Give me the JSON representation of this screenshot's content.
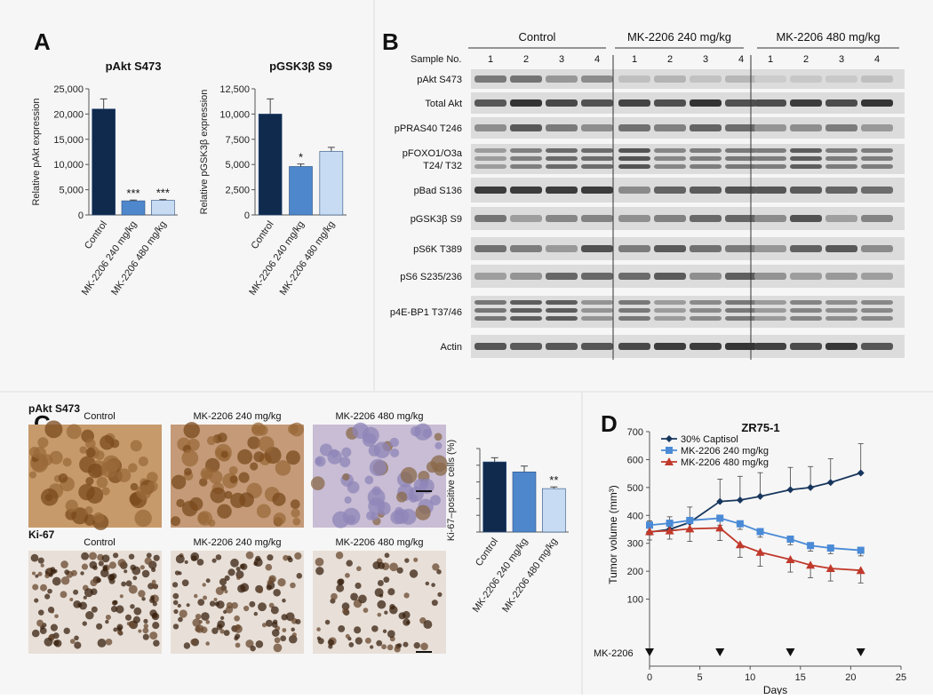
{
  "panels": {
    "A": "A",
    "B": "B",
    "C": "C",
    "D": "D"
  },
  "colors": {
    "control": "#0f2a4d",
    "dose240": "#4f87cc",
    "dose480": "#c7dbf3",
    "captisol": "#17365d",
    "mk240": "#4a8ad6",
    "mk480": "#c0392b"
  },
  "chart_data": [
    {
      "id": "A1",
      "type": "bar",
      "title": "pAkt S473",
      "ylabel": "Relative pAkt expression",
      "categories": [
        "Control",
        "MK-2206 240 mg/kg",
        "MK-2206 480 mg/kg"
      ],
      "values": [
        21000,
        2800,
        2900
      ],
      "errors": [
        2000,
        150,
        150
      ],
      "annotations": [
        "",
        "***",
        "***"
      ],
      "yticks": [
        "0",
        "5,000",
        "10,000",
        "15,000",
        "20,000",
        "25,000"
      ],
      "ylim": [
        0,
        25000
      ]
    },
    {
      "id": "A2",
      "type": "bar",
      "title": "pGSK3β S9",
      "ylabel": "Relative pGSK3β expression",
      "categories": [
        "Control",
        "MK-2206 240 mg/kg",
        "MK-2206 480 mg/kg"
      ],
      "values": [
        10000,
        4800,
        6300
      ],
      "errors": [
        1500,
        250,
        400
      ],
      "annotations": [
        "",
        "*",
        ""
      ],
      "yticks": [
        "0",
        "2,500",
        "5,000",
        "7,500",
        "10,000",
        "12,500"
      ],
      "ylim": [
        0,
        12500
      ]
    },
    {
      "id": "C",
      "type": "bar",
      "ylabel": "Ki-67–positive cells (%)",
      "categories": [
        "Control",
        "MK-2206 240 mg/kg",
        "MK-2206 480 mg/kg"
      ],
      "values": [
        84,
        72,
        52
      ],
      "errors": [
        5,
        7,
        2
      ],
      "annotations": [
        "",
        "",
        "**"
      ],
      "ylim": [
        0,
        100
      ]
    },
    {
      "id": "D",
      "type": "line",
      "title": "ZR75-1",
      "xlabel": "Days",
      "ylabel": "Tumor volume (mm³)",
      "xticks": [
        "0",
        "5",
        "10",
        "15",
        "20",
        "25"
      ],
      "yticks": [
        "0",
        "100",
        "200",
        "300",
        "400",
        "500",
        "600",
        "700"
      ],
      "xlim": [
        0,
        25
      ],
      "ylim": [
        0,
        700
      ],
      "dosing_label": "MK-2206",
      "dosing_days": [
        0,
        7,
        14,
        21
      ],
      "legend": "top-left",
      "series": [
        {
          "name": "30% Captisol",
          "marker": "diamond",
          "x": [
            0,
            2,
            4,
            7,
            9,
            11,
            14,
            16,
            18,
            21
          ],
          "y": [
            340,
            350,
            375,
            450,
            455,
            468,
            492,
            500,
            518,
            552
          ],
          "err": [
            40,
            45,
            55,
            80,
            85,
            85,
            80,
            75,
            85,
            105
          ]
        },
        {
          "name": "MK-2206 240 mg/kg",
          "marker": "square",
          "x": [
            0,
            2,
            4,
            7,
            9,
            11,
            14,
            16,
            18,
            21
          ],
          "y": [
            365,
            372,
            382,
            390,
            370,
            342,
            315,
            292,
            283,
            275
          ],
          "err": [
            35,
            30,
            35,
            25,
            20,
            20,
            20,
            20,
            20,
            20
          ]
        },
        {
          "name": "MK-2206 480 mg/kg",
          "marker": "triangle",
          "x": [
            0,
            2,
            4,
            7,
            9,
            11,
            14,
            16,
            18,
            21
          ],
          "y": [
            342,
            345,
            352,
            355,
            295,
            268,
            242,
            222,
            210,
            203
          ],
          "err": [
            30,
            30,
            45,
            45,
            45,
            50,
            45,
            45,
            45,
            45
          ]
        }
      ]
    }
  ],
  "blot": {
    "sample_label": "Sample No.",
    "groups": [
      {
        "name": "Control",
        "samples": [
          "1",
          "2",
          "3",
          "4"
        ]
      },
      {
        "name": "MK-2206 240 mg/kg",
        "samples": [
          "1",
          "2",
          "3",
          "4"
        ]
      },
      {
        "name": "MK-2206 480 mg/kg",
        "samples": [
          "1",
          "2",
          "3",
          "4"
        ]
      }
    ],
    "rows": [
      {
        "label": [
          "pAkt S473"
        ]
      },
      {
        "label": [
          "Total Akt"
        ]
      },
      {
        "label": [
          "pPRAS40 T246"
        ]
      },
      {
        "label": [
          "pFOXO1/O3a",
          "T24/ T32"
        ]
      },
      {
        "label": [
          "pBad S136"
        ]
      },
      {
        "label": [
          "pGSK3β S9"
        ]
      },
      {
        "label": [
          "pS6K  T389"
        ]
      },
      {
        "label": [
          "pS6 S235/236"
        ]
      },
      {
        "label": [
          "p4E-BP1 T37/46"
        ]
      },
      {
        "label": [
          "Actin"
        ]
      }
    ]
  },
  "ihc": {
    "rows": [
      {
        "label": "pAkt S473",
        "stain": "pakt"
      },
      {
        "label": "Ki-67",
        "stain": "ki67"
      }
    ],
    "columns": [
      "Control",
      "MK-2206 240 mg/kg",
      "MK-2206 480 mg/kg"
    ]
  }
}
